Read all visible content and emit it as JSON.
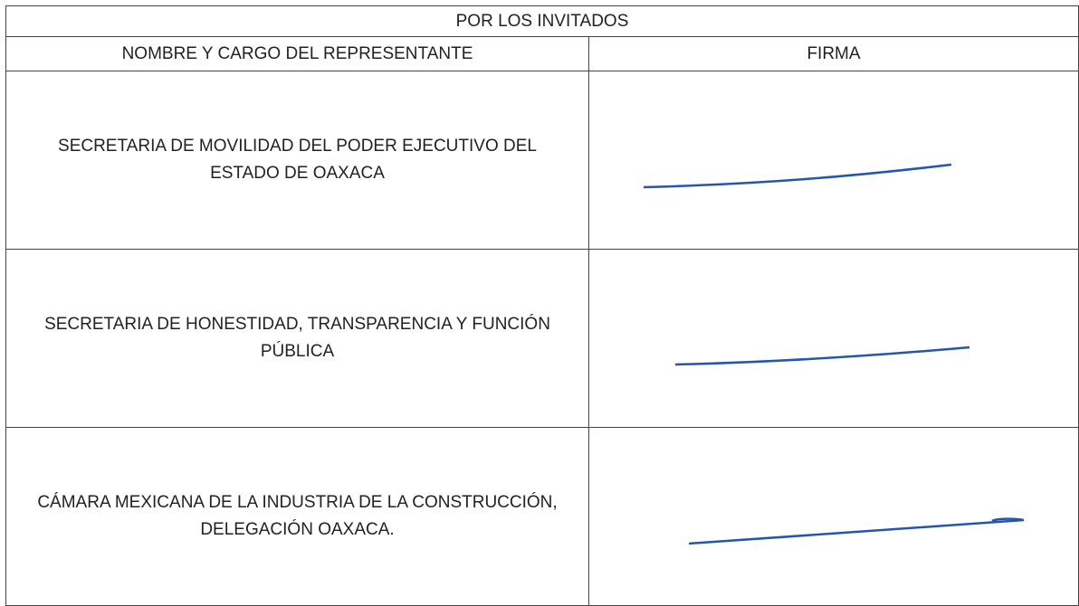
{
  "table": {
    "title": "POR LOS INVITADOS",
    "headers": [
      "NOMBRE Y CARGO DEL REPRESENTANTE",
      "FIRMA"
    ],
    "rows": [
      [
        "SECRETARIA DE MOVILIDAD DEL PODER EJECUTIVO DEL ESTADO DE OAXACA"
      ],
      [
        "SECRETARIA DE HONESTIDAD, TRANSPARENCIA Y FUNCIÓN PÚBLICA"
      ],
      [
        "CÁMARA MEXICANA DE LA INDUSTRIA DE LA CONSTRUCCIÓN, DELEGACIÓN OAXACA."
      ]
    ]
  }
}
